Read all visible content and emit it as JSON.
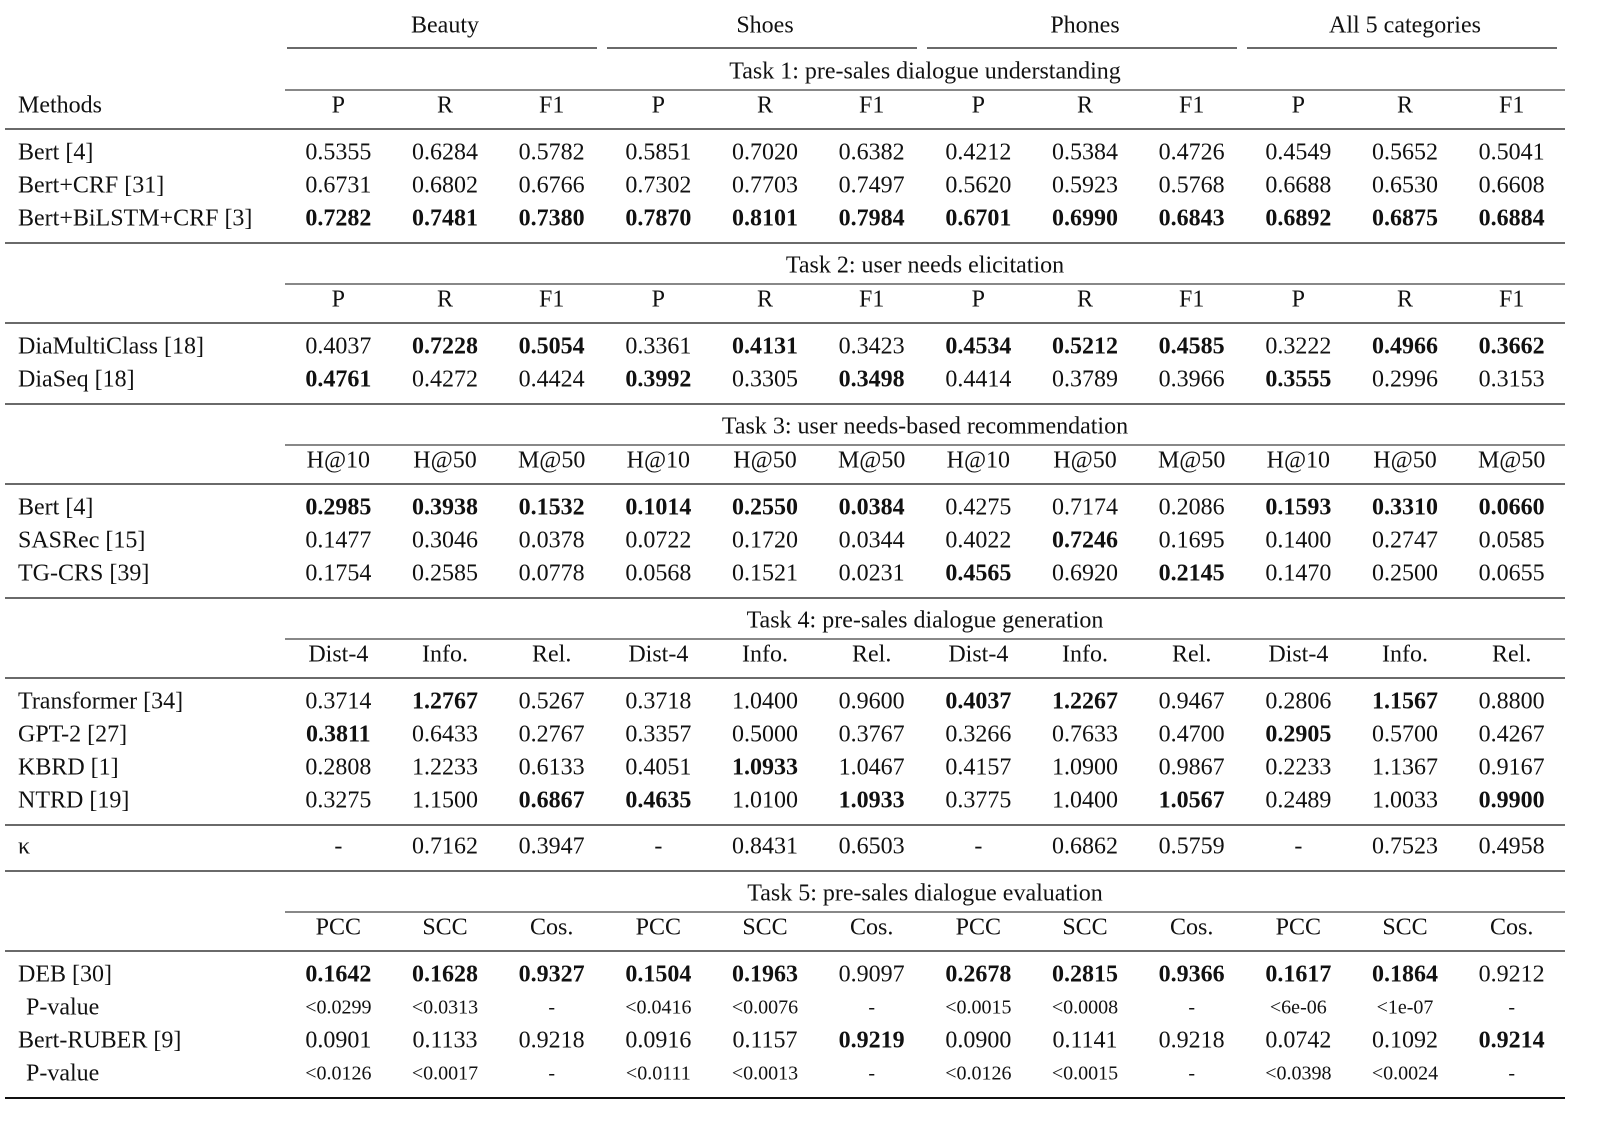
{
  "methods_label": "Methods",
  "groups": [
    "Beauty",
    "Shoes",
    "Phones",
    "All 5 categories"
  ],
  "sections": [
    {
      "title": "Task 1: pre-sales dialogue understanding",
      "columns": [
        "P",
        "R",
        "F1",
        "P",
        "R",
        "F1",
        "P",
        "R",
        "F1",
        "P",
        "R",
        "F1"
      ],
      "rows": [
        {
          "method": "Bert [4]",
          "values": [
            "0.5355",
            "0.6284",
            "0.5782",
            "0.5851",
            "0.7020",
            "0.6382",
            "0.4212",
            "0.5384",
            "0.4726",
            "0.4549",
            "0.5652",
            "0.5041"
          ]
        },
        {
          "method": "Bert+CRF [31]",
          "values": [
            "0.6731",
            "0.6802",
            "0.6766",
            "0.7302",
            "0.7703",
            "0.7497",
            "0.5620",
            "0.5923",
            "0.5768",
            "0.6688",
            "0.6530",
            "0.6608"
          ]
        },
        {
          "method": "Bert+BiLSTM+CRF [3]",
          "values": [
            "0.7282",
            "0.7481",
            "0.7380",
            "0.7870",
            "0.8101",
            "0.7984",
            "0.6701",
            "0.6990",
            "0.6843",
            "0.6892",
            "0.6875",
            "0.6884"
          ],
          "bold": [
            0,
            1,
            2,
            3,
            4,
            5,
            6,
            7,
            8,
            9,
            10,
            11
          ]
        }
      ]
    },
    {
      "title": "Task 2: user needs elicitation",
      "columns": [
        "P",
        "R",
        "F1",
        "P",
        "R",
        "F1",
        "P",
        "R",
        "F1",
        "P",
        "R",
        "F1"
      ],
      "rows": [
        {
          "method": "DiaMultiClass [18]",
          "values": [
            "0.4037",
            "0.7228",
            "0.5054",
            "0.3361",
            "0.4131",
            "0.3423",
            "0.4534",
            "0.5212",
            "0.4585",
            "0.3222",
            "0.4966",
            "0.3662"
          ],
          "bold": [
            1,
            2,
            4,
            6,
            7,
            8,
            10,
            11
          ]
        },
        {
          "method": "DiaSeq [18]",
          "values": [
            "0.4761",
            "0.4272",
            "0.4424",
            "0.3992",
            "0.3305",
            "0.3498",
            "0.4414",
            "0.3789",
            "0.3966",
            "0.3555",
            "0.2996",
            "0.3153"
          ],
          "bold": [
            0,
            3,
            5,
            9
          ]
        }
      ]
    },
    {
      "title": "Task 3: user needs-based recommendation",
      "columns": [
        "H@10",
        "H@50",
        "M@50",
        "H@10",
        "H@50",
        "M@50",
        "H@10",
        "H@50",
        "M@50",
        "H@10",
        "H@50",
        "M@50"
      ],
      "rows": [
        {
          "method": "Bert [4]",
          "values": [
            "0.2985",
            "0.3938",
            "0.1532",
            "0.1014",
            "0.2550",
            "0.0384",
            "0.4275",
            "0.7174",
            "0.2086",
            "0.1593",
            "0.3310",
            "0.0660"
          ],
          "bold": [
            0,
            1,
            2,
            3,
            4,
            5,
            9,
            10,
            11
          ]
        },
        {
          "method": "SASRec [15]",
          "values": [
            "0.1477",
            "0.3046",
            "0.0378",
            "0.0722",
            "0.1720",
            "0.0344",
            "0.4022",
            "0.7246",
            "0.1695",
            "0.1400",
            "0.2747",
            "0.0585"
          ],
          "bold": [
            7
          ]
        },
        {
          "method": "TG-CRS [39]",
          "values": [
            "0.1754",
            "0.2585",
            "0.0778",
            "0.0568",
            "0.1521",
            "0.0231",
            "0.4565",
            "0.6920",
            "0.2145",
            "0.1470",
            "0.2500",
            "0.0655"
          ],
          "bold": [
            6,
            8
          ]
        }
      ]
    },
    {
      "title": "Task 4: pre-sales dialogue generation",
      "columns": [
        "Dist-4",
        "Info.",
        "Rel.",
        "Dist-4",
        "Info.",
        "Rel.",
        "Dist-4",
        "Info.",
        "Rel.",
        "Dist-4",
        "Info.",
        "Rel."
      ],
      "rows": [
        {
          "method": "Transformer [34]",
          "values": [
            "0.3714",
            "1.2767",
            "0.5267",
            "0.3718",
            "1.0400",
            "0.9600",
            "0.4037",
            "1.2267",
            "0.9467",
            "0.2806",
            "1.1567",
            "0.8800"
          ],
          "bold": [
            1,
            6,
            7,
            10
          ]
        },
        {
          "method": "GPT-2 [27]",
          "values": [
            "0.3811",
            "0.6433",
            "0.2767",
            "0.3357",
            "0.5000",
            "0.3767",
            "0.3266",
            "0.7633",
            "0.4700",
            "0.2905",
            "0.5700",
            "0.4267"
          ],
          "bold": [
            0,
            9
          ]
        },
        {
          "method": "KBRD [1]",
          "values": [
            "0.2808",
            "1.2233",
            "0.6133",
            "0.4051",
            "1.0933",
            "1.0467",
            "0.4157",
            "1.0900",
            "0.9867",
            "0.2233",
            "1.1367",
            "0.9167"
          ],
          "bold": [
            4
          ]
        },
        {
          "method": "NTRD [19]",
          "values": [
            "0.3275",
            "1.1500",
            "0.6867",
            "0.4635",
            "1.0100",
            "1.0933",
            "0.3775",
            "1.0400",
            "1.0567",
            "0.2489",
            "1.0033",
            "0.9900"
          ],
          "bold": [
            2,
            3,
            5,
            8,
            11
          ]
        }
      ]
    },
    {
      "rows": [
        {
          "method": "κ",
          "values": [
            "-",
            "0.7162",
            "0.3947",
            "-",
            "0.8431",
            "0.6503",
            "-",
            "0.6862",
            "0.5759",
            "-",
            "0.7523",
            "0.4958"
          ]
        }
      ]
    },
    {
      "title": "Task 5: pre-sales dialogue evaluation",
      "columns": [
        "PCC",
        "SCC",
        "Cos.",
        "PCC",
        "SCC",
        "Cos.",
        "PCC",
        "SCC",
        "Cos.",
        "PCC",
        "SCC",
        "Cos."
      ],
      "rows": [
        {
          "method": "DEB [30]",
          "values": [
            "0.1642",
            "0.1628",
            "0.9327",
            "0.1504",
            "0.1963",
            "0.9097",
            "0.2678",
            "0.2815",
            "0.9366",
            "0.1617",
            "0.1864",
            "0.9212"
          ],
          "bold": [
            0,
            1,
            2,
            3,
            4,
            6,
            7,
            8,
            9,
            10
          ]
        },
        {
          "method": "P-value",
          "values": [
            "<0.0299",
            "<0.0313",
            "-",
            "<0.0416",
            "<0.0076",
            "-",
            "<0.0015",
            "<0.0008",
            "-",
            "<6e-06",
            "<1e-07",
            "-"
          ],
          "small": true
        },
        {
          "method": "Bert-RUBER [9]",
          "values": [
            "0.0901",
            "0.1133",
            "0.9218",
            "0.0916",
            "0.1157",
            "0.9219",
            "0.0900",
            "0.1141",
            "0.9218",
            "0.0742",
            "0.1092",
            "0.9214"
          ],
          "bold": [
            5,
            11
          ]
        },
        {
          "method": "P-value",
          "values": [
            "<0.0126",
            "<0.0017",
            "-",
            "<0.0111",
            "<0.0013",
            "-",
            "<0.0126",
            "<0.0015",
            "-",
            "<0.0398",
            "<0.0024",
            "-"
          ],
          "small": true
        }
      ]
    }
  ]
}
